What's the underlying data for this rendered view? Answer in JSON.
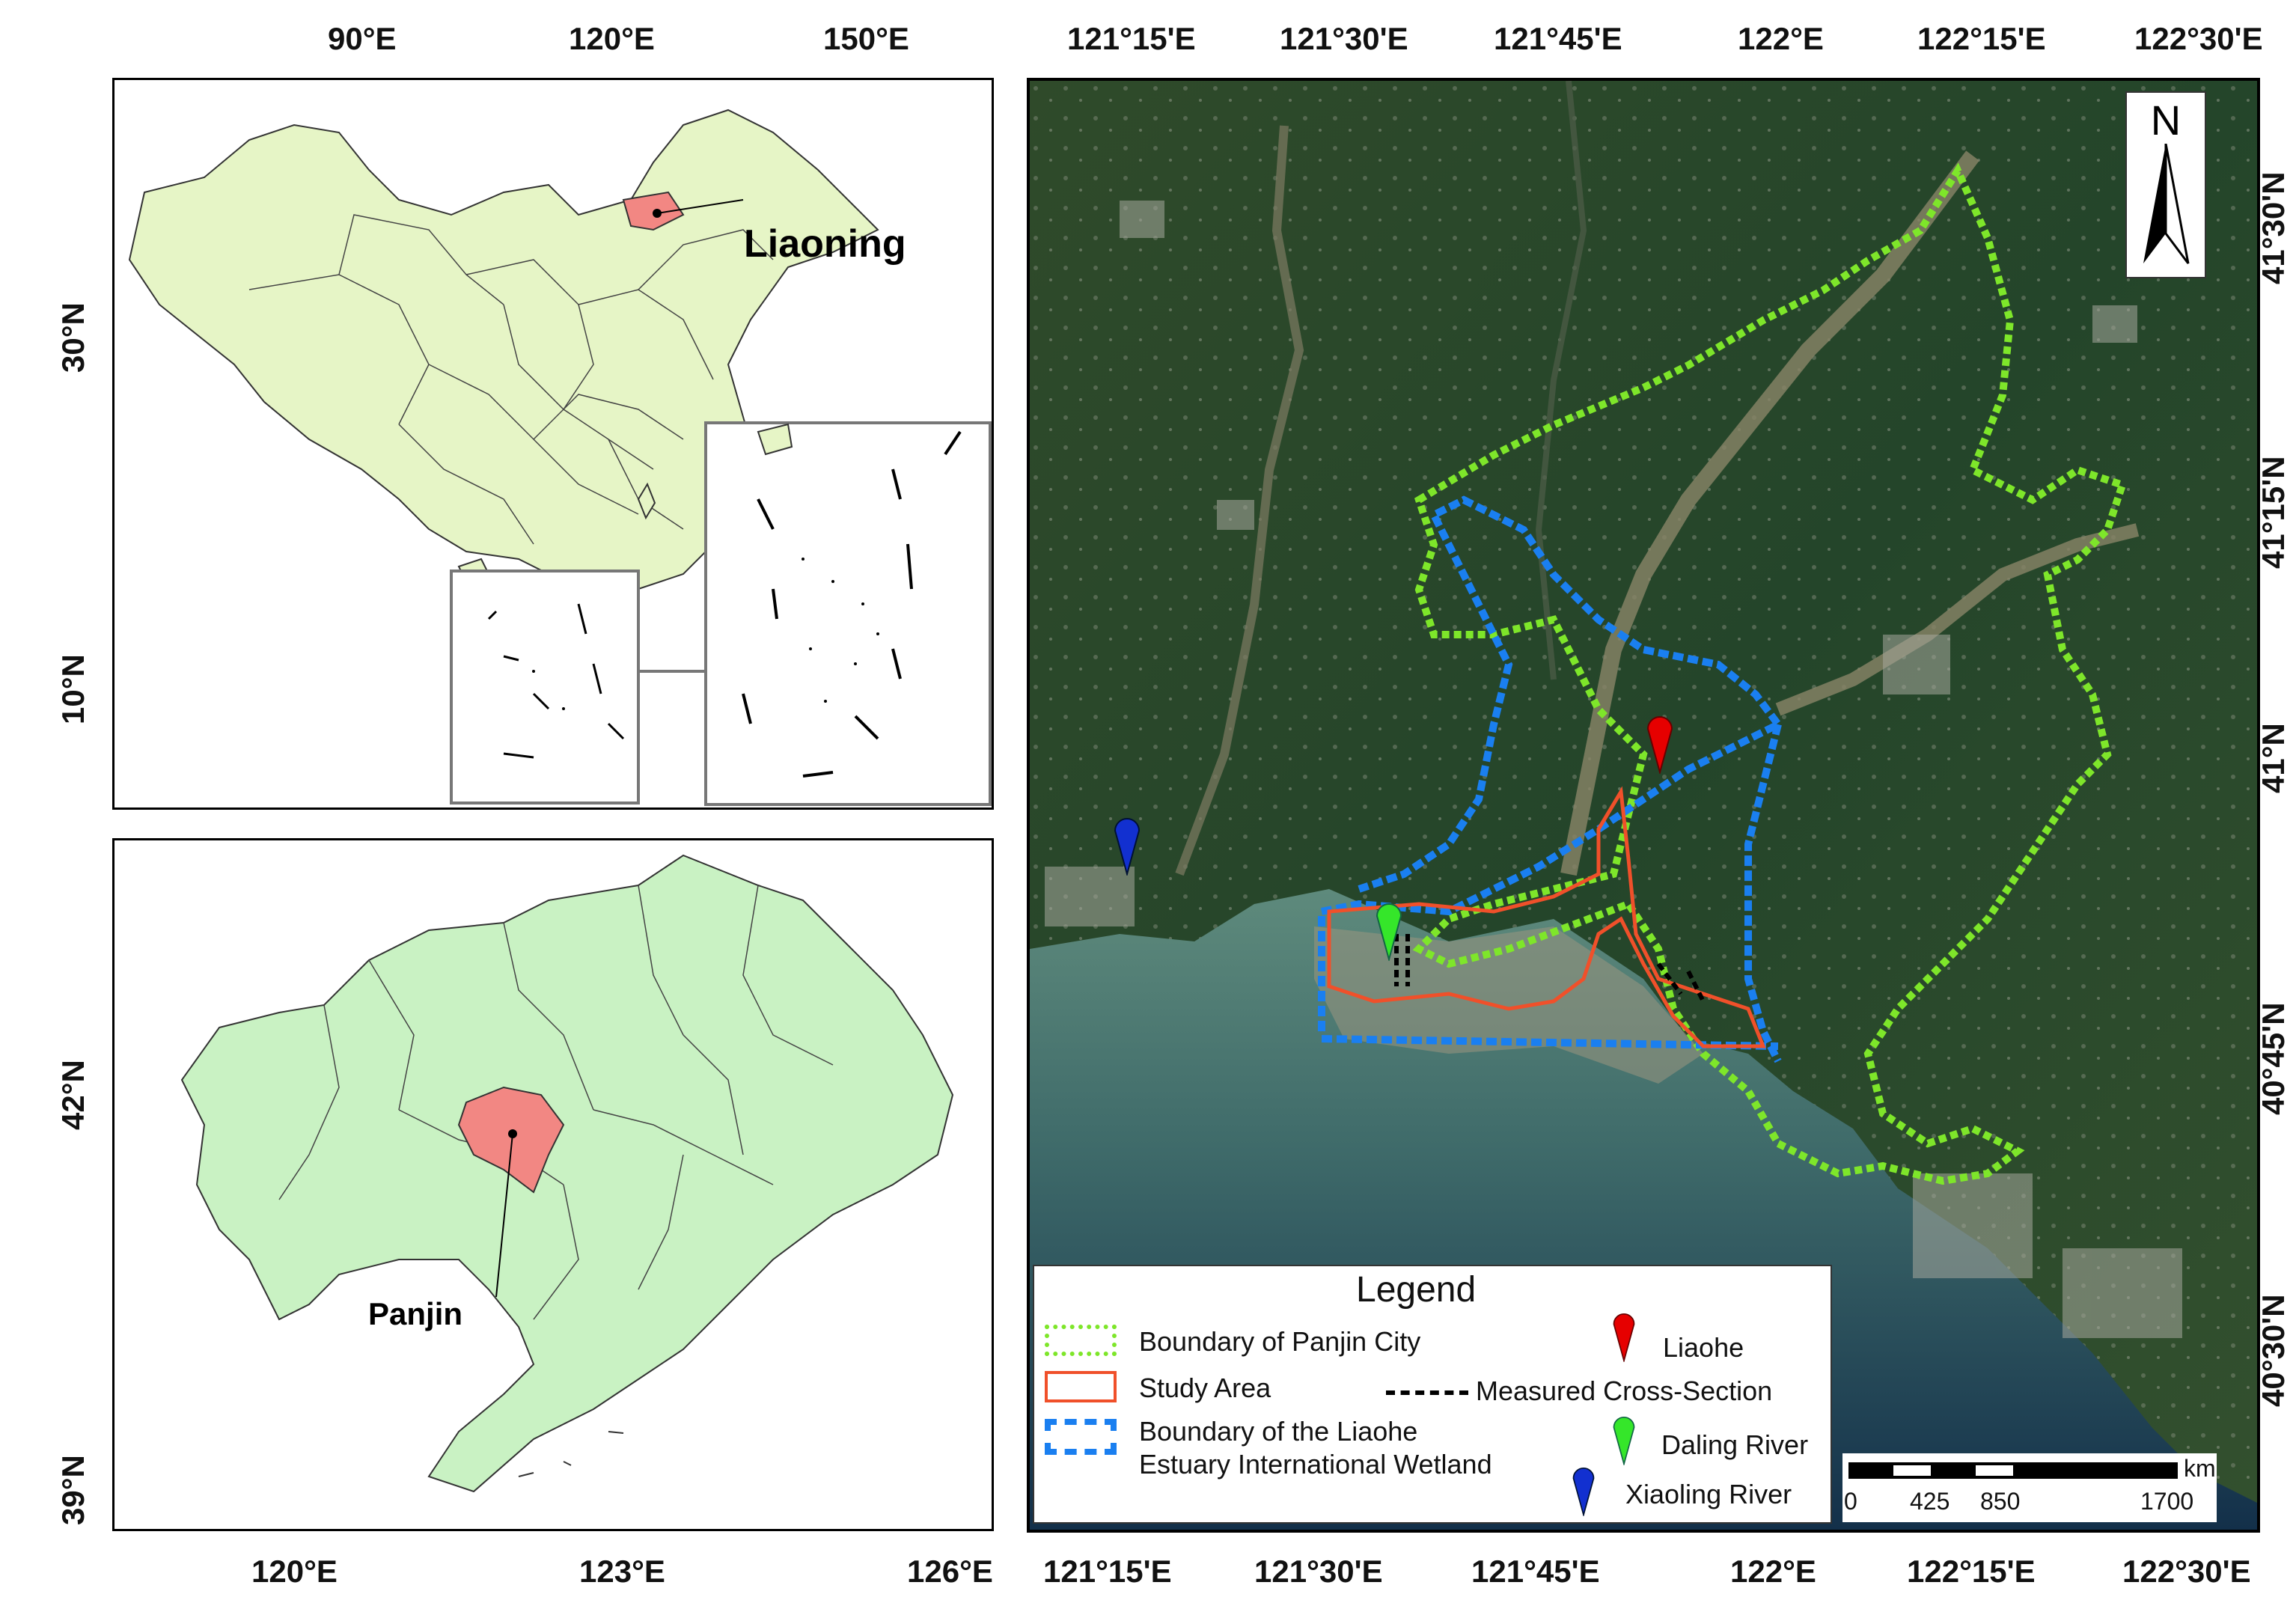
{
  "top_map": {
    "x_ticks": [
      "90°E",
      "120°E",
      "150°E"
    ],
    "y_ticks": [
      "30°N",
      "10°N"
    ],
    "label": "Liaoning"
  },
  "bottom_map": {
    "x_ticks": [
      "120°E",
      "123°E",
      "126°E"
    ],
    "y_ticks": [
      "42°N",
      "39°N"
    ],
    "label": "Panjin"
  },
  "right_map": {
    "top_ticks": [
      "121°15'E",
      "121°30'E",
      "121°45'E",
      "122°E",
      "122°15'E",
      "122°30'E"
    ],
    "bottom_ticks": [
      "121°15'E",
      "121°30'E",
      "121°45'E",
      "122°E",
      "122°15'E",
      "122°30'E"
    ],
    "right_ticks": [
      "41°30'N",
      "41°15'N",
      "41°N",
      "40°45'N",
      "40°30'N"
    ],
    "north_label": "N"
  },
  "legend": {
    "title": "Legend",
    "panjin_boundary": "Boundary of Panjin City",
    "study_area": "Study Area",
    "wetland_line1": "Boundary of the Liaohe",
    "wetland_line2": "Estuary International Wetland",
    "liaohe": "Liaohe",
    "cross_section": "Measured Cross-Section",
    "daling": "Daling River",
    "xiaoling": "Xiaoling River"
  },
  "scale": {
    "unit": "km",
    "labels": [
      "0",
      "425",
      "850",
      "1700"
    ]
  },
  "colors": {
    "china_fill": "#e6f5c6",
    "liaoning_fill": "#c9f2c3",
    "highlight": "#f28783",
    "panjin_boundary": "#7ee62a",
    "study_area": "#f0502a",
    "wetland": "#1a7ff0",
    "liaohe_marker": "#e60000",
    "daling_marker": "#35e62a",
    "xiaoling_marker": "#1230d0"
  }
}
